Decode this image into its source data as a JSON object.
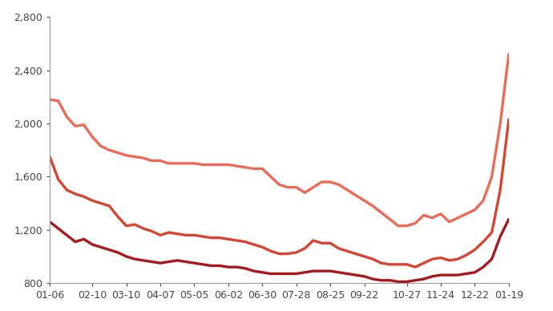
{
  "chart_data": {
    "type": "line",
    "categories": [
      "01-06",
      null,
      null,
      null,
      null,
      "02-10",
      null,
      null,
      null,
      "03-10",
      null,
      null,
      null,
      "04-07",
      null,
      null,
      null,
      "05-05",
      null,
      null,
      null,
      "06-02",
      null,
      null,
      null,
      "06-30",
      null,
      null,
      null,
      "07-28",
      null,
      null,
      null,
      "08-25",
      null,
      null,
      null,
      "09-22",
      null,
      null,
      null,
      null,
      "10-27",
      null,
      null,
      null,
      "11-24",
      null,
      null,
      null,
      "12-22",
      null,
      null,
      null,
      "01-19"
    ],
    "series": [
      {
        "color": "#ec6a56",
        "values": [
          2180,
          2170,
          2050,
          1980,
          1990,
          1900,
          1830,
          1800,
          1780,
          1760,
          1750,
          1740,
          1720,
          1720,
          1700,
          1700,
          1700,
          1700,
          1690,
          1690,
          1690,
          1690,
          1680,
          1670,
          1660,
          1660,
          1600,
          1540,
          1520,
          1520,
          1480,
          1520,
          1560,
          1560,
          1540,
          1500,
          1460,
          1420,
          1380,
          1330,
          1280,
          1230,
          1230,
          1250,
          1310,
          1290,
          1320,
          1260,
          1290,
          1320,
          1350,
          1420,
          1600,
          2000,
          2520
        ]
      },
      {
        "color": "#d94432",
        "values": [
          1750,
          1580,
          1500,
          1470,
          1450,
          1420,
          1400,
          1380,
          1300,
          1230,
          1240,
          1210,
          1190,
          1160,
          1180,
          1170,
          1160,
          1160,
          1150,
          1140,
          1140,
          1130,
          1120,
          1110,
          1090,
          1070,
          1040,
          1020,
          1020,
          1030,
          1060,
          1120,
          1100,
          1100,
          1060,
          1040,
          1020,
          1000,
          980,
          950,
          940,
          940,
          940,
          920,
          950,
          980,
          990,
          970,
          980,
          1010,
          1050,
          1110,
          1180,
          1500,
          2030
        ]
      },
      {
        "color": "#a8191c",
        "values": [
          1260,
          1210,
          1160,
          1110,
          1130,
          1090,
          1070,
          1050,
          1030,
          1000,
          980,
          970,
          960,
          950,
          960,
          970,
          960,
          950,
          940,
          930,
          930,
          920,
          920,
          910,
          890,
          880,
          870,
          870,
          870,
          870,
          880,
          890,
          890,
          890,
          880,
          870,
          860,
          850,
          830,
          820,
          820,
          810,
          810,
          820,
          830,
          850,
          860,
          860,
          860,
          870,
          880,
          920,
          980,
          1150,
          1280
        ]
      }
    ],
    "ylim": [
      800,
      2800
    ],
    "yticks": [
      800,
      {
        "value": 1200,
        "label": "1,200"
      },
      {
        "value": 1600,
        "label": "1,600"
      },
      {
        "value": 2000,
        "label": "2,000"
      },
      {
        "value": 2400,
        "label": "2,400"
      },
      {
        "value": 2800,
        "label": "2,800"
      }
    ],
    "grid": false
  }
}
